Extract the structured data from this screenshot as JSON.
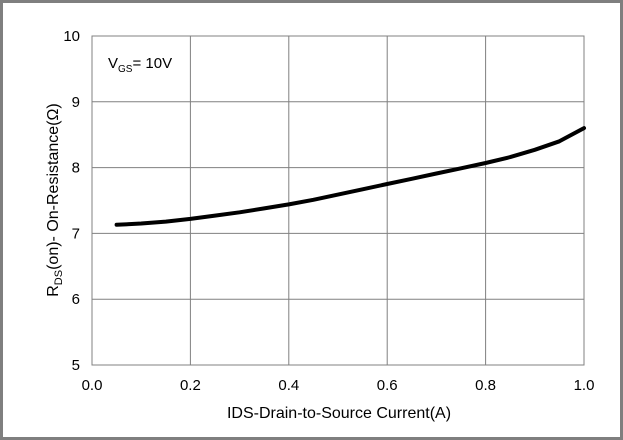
{
  "chart_data": {
    "type": "line",
    "title": "",
    "xlabel": "IDS-Drain-to-Source  Current(A)",
    "ylabel": {
      "main": "R",
      "sub": "DS",
      "rest": "(on)- On-Resistance(Ω)"
    },
    "annotation": {
      "main": "V",
      "sub": "GS",
      "rest": "= 10V"
    },
    "xlim": [
      0.0,
      1.0
    ],
    "ylim": [
      5,
      10
    ],
    "xticks": [
      "0.0",
      "0.2",
      "0.4",
      "0.6",
      "0.8",
      "1.0"
    ],
    "yticks": [
      "5",
      "6",
      "7",
      "8",
      "9",
      "10"
    ],
    "grid": true,
    "series": [
      {
        "color": "#000000",
        "x": [
          0.05,
          0.1,
          0.15,
          0.2,
          0.25,
          0.3,
          0.35,
          0.4,
          0.45,
          0.5,
          0.55,
          0.6,
          0.65,
          0.7,
          0.75,
          0.8,
          0.85,
          0.9,
          0.95,
          1.0
        ],
        "y": [
          7.13,
          7.15,
          7.18,
          7.22,
          7.27,
          7.32,
          7.38,
          7.44,
          7.51,
          7.59,
          7.67,
          7.75,
          7.83,
          7.91,
          7.99,
          8.07,
          8.16,
          8.27,
          8.4,
          8.6
        ]
      }
    ]
  }
}
